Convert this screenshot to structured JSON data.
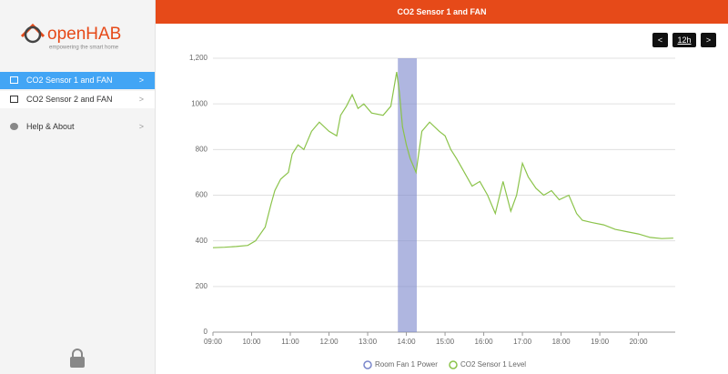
{
  "logo": {
    "name": "openHAB",
    "tagline": "empowering the smart home"
  },
  "nav": {
    "items": [
      "CO2 Sensor 1 and FAN",
      "CO2 Sensor 2 and FAN",
      "Help & About"
    ]
  },
  "header": {
    "title": "CO2 Sensor 1 and FAN"
  },
  "controls": {
    "period": "12h"
  },
  "chart_data": {
    "type": "line",
    "xlim": [
      9,
      20.95
    ],
    "xticks": [
      {
        "value": 9,
        "label": "09:00"
      },
      {
        "value": 10,
        "label": "10:00"
      },
      {
        "value": 11,
        "label": "11:00"
      },
      {
        "value": 12,
        "label": "12:00"
      },
      {
        "value": 13,
        "label": "13:00"
      },
      {
        "value": 14,
        "label": "14:00"
      },
      {
        "value": 15,
        "label": "15:00"
      },
      {
        "value": 16,
        "label": "16:00"
      },
      {
        "value": 17,
        "label": "17:00"
      },
      {
        "value": 18,
        "label": "18:00"
      },
      {
        "value": 19,
        "label": "19:00"
      },
      {
        "value": 20,
        "label": "20:00"
      }
    ],
    "ylim": [
      0,
      1200
    ],
    "yticks": [
      0,
      200,
      400,
      600,
      800,
      1000,
      {
        "value": 1200,
        "label": "1,200"
      }
    ],
    "grid": true,
    "series": [
      {
        "name": "Room Fan 1 Power",
        "color": "#7986cb",
        "x": [
          13.78,
          14.27
        ]
      },
      {
        "name": "CO2 Sensor 1 Level",
        "color": "#8bc34a",
        "x": [
          9.0,
          9.3,
          9.6,
          9.9,
          10.1,
          10.35,
          10.5,
          10.6,
          10.75,
          10.95,
          11.05,
          11.2,
          11.35,
          11.55,
          11.75,
          12.0,
          12.2,
          12.3,
          12.45,
          12.6,
          12.75,
          12.9,
          13.1,
          13.4,
          13.6,
          13.75,
          13.82,
          13.9,
          14.0,
          14.1,
          14.25,
          14.4,
          14.6,
          14.85,
          15.0,
          15.15,
          15.3,
          15.5,
          15.7,
          15.9,
          16.1,
          16.3,
          16.5,
          16.7,
          16.85,
          17.0,
          17.15,
          17.35,
          17.55,
          17.75,
          17.95,
          18.2,
          18.4,
          18.55,
          18.8,
          19.1,
          19.4,
          19.7,
          20.0,
          20.3,
          20.6,
          20.9
        ],
        "values": [
          370,
          372,
          375,
          380,
          400,
          460,
          560,
          620,
          670,
          700,
          780,
          820,
          800,
          880,
          920,
          880,
          860,
          950,
          990,
          1040,
          980,
          1000,
          960,
          950,
          990,
          1140,
          1050,
          900,
          820,
          760,
          700,
          880,
          920,
          880,
          860,
          800,
          760,
          700,
          640,
          660,
          600,
          520,
          660,
          530,
          600,
          740,
          680,
          630,
          600,
          620,
          580,
          600,
          520,
          490,
          480,
          470,
          450,
          440,
          430,
          415,
          410,
          412
        ]
      }
    ]
  }
}
